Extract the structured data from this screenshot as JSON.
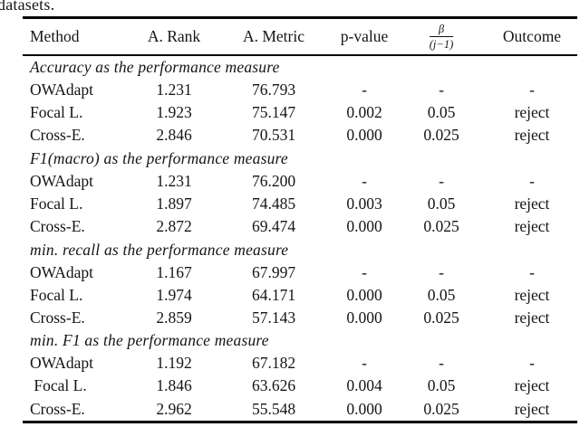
{
  "caption_fragment": "datasets.",
  "table": {
    "columns": {
      "method": "Method",
      "rank": "A. Rank",
      "metric": "A. Metric",
      "pvalue": "p-value",
      "beta_numerator": "β",
      "beta_denominator": "(j−1)",
      "outcome": "Outcome"
    },
    "sections": [
      {
        "title": "Accuracy as the performance measure",
        "rows": [
          {
            "method": "OWAdapt",
            "rank": "1.231",
            "metric": "76.793",
            "pvalue": "-",
            "beta": "-",
            "outcome": "-"
          },
          {
            "method": "Focal L.",
            "rank": "1.923",
            "metric": "75.147",
            "pvalue": "0.002",
            "beta": "0.05",
            "outcome": "reject"
          },
          {
            "method": "Cross-E.",
            "rank": "2.846",
            "metric": "70.531",
            "pvalue": "0.000",
            "beta": "0.025",
            "outcome": "reject"
          }
        ]
      },
      {
        "title": "F1(macro) as the performance measure",
        "rows": [
          {
            "method": "OWAdapt",
            "rank": "1.231",
            "metric": "76.200",
            "pvalue": "-",
            "beta": "-",
            "outcome": "-"
          },
          {
            "method": "Focal L.",
            "rank": "1.897",
            "metric": "74.485",
            "pvalue": "0.003",
            "beta": "0.05",
            "outcome": "reject"
          },
          {
            "method": "Cross-E.",
            "rank": "2.872",
            "metric": "69.474",
            "pvalue": "0.000",
            "beta": "0.025",
            "outcome": "reject"
          }
        ]
      },
      {
        "title": "min. recall as the performance measure",
        "rows": [
          {
            "method": "OWAdapt",
            "rank": "1.167",
            "metric": "67.997",
            "pvalue": "-",
            "beta": "-",
            "outcome": "-"
          },
          {
            "method": "Focal L.",
            "rank": "1.974",
            "metric": "64.171",
            "pvalue": "0.000",
            "beta": "0.05",
            "outcome": "reject"
          },
          {
            "method": "Cross-E.",
            "rank": "2.859",
            "metric": "57.143",
            "pvalue": "0.000",
            "beta": "0.025",
            "outcome": "reject"
          }
        ]
      },
      {
        "title": "min. F1 as the performance measure",
        "rows": [
          {
            "method": "OWAdapt",
            "rank": "1.192",
            "metric": "67.182",
            "pvalue": "-",
            "beta": "-",
            "outcome": "-"
          },
          {
            "method": " Focal L.",
            "rank": "1.846",
            "metric": "63.626",
            "pvalue": "0.004",
            "beta": "0.05",
            "outcome": "reject"
          },
          {
            "method": "Cross-E.",
            "rank": "2.962",
            "metric": "55.548",
            "pvalue": "0.000",
            "beta": "0.025",
            "outcome": "reject"
          }
        ]
      }
    ]
  }
}
